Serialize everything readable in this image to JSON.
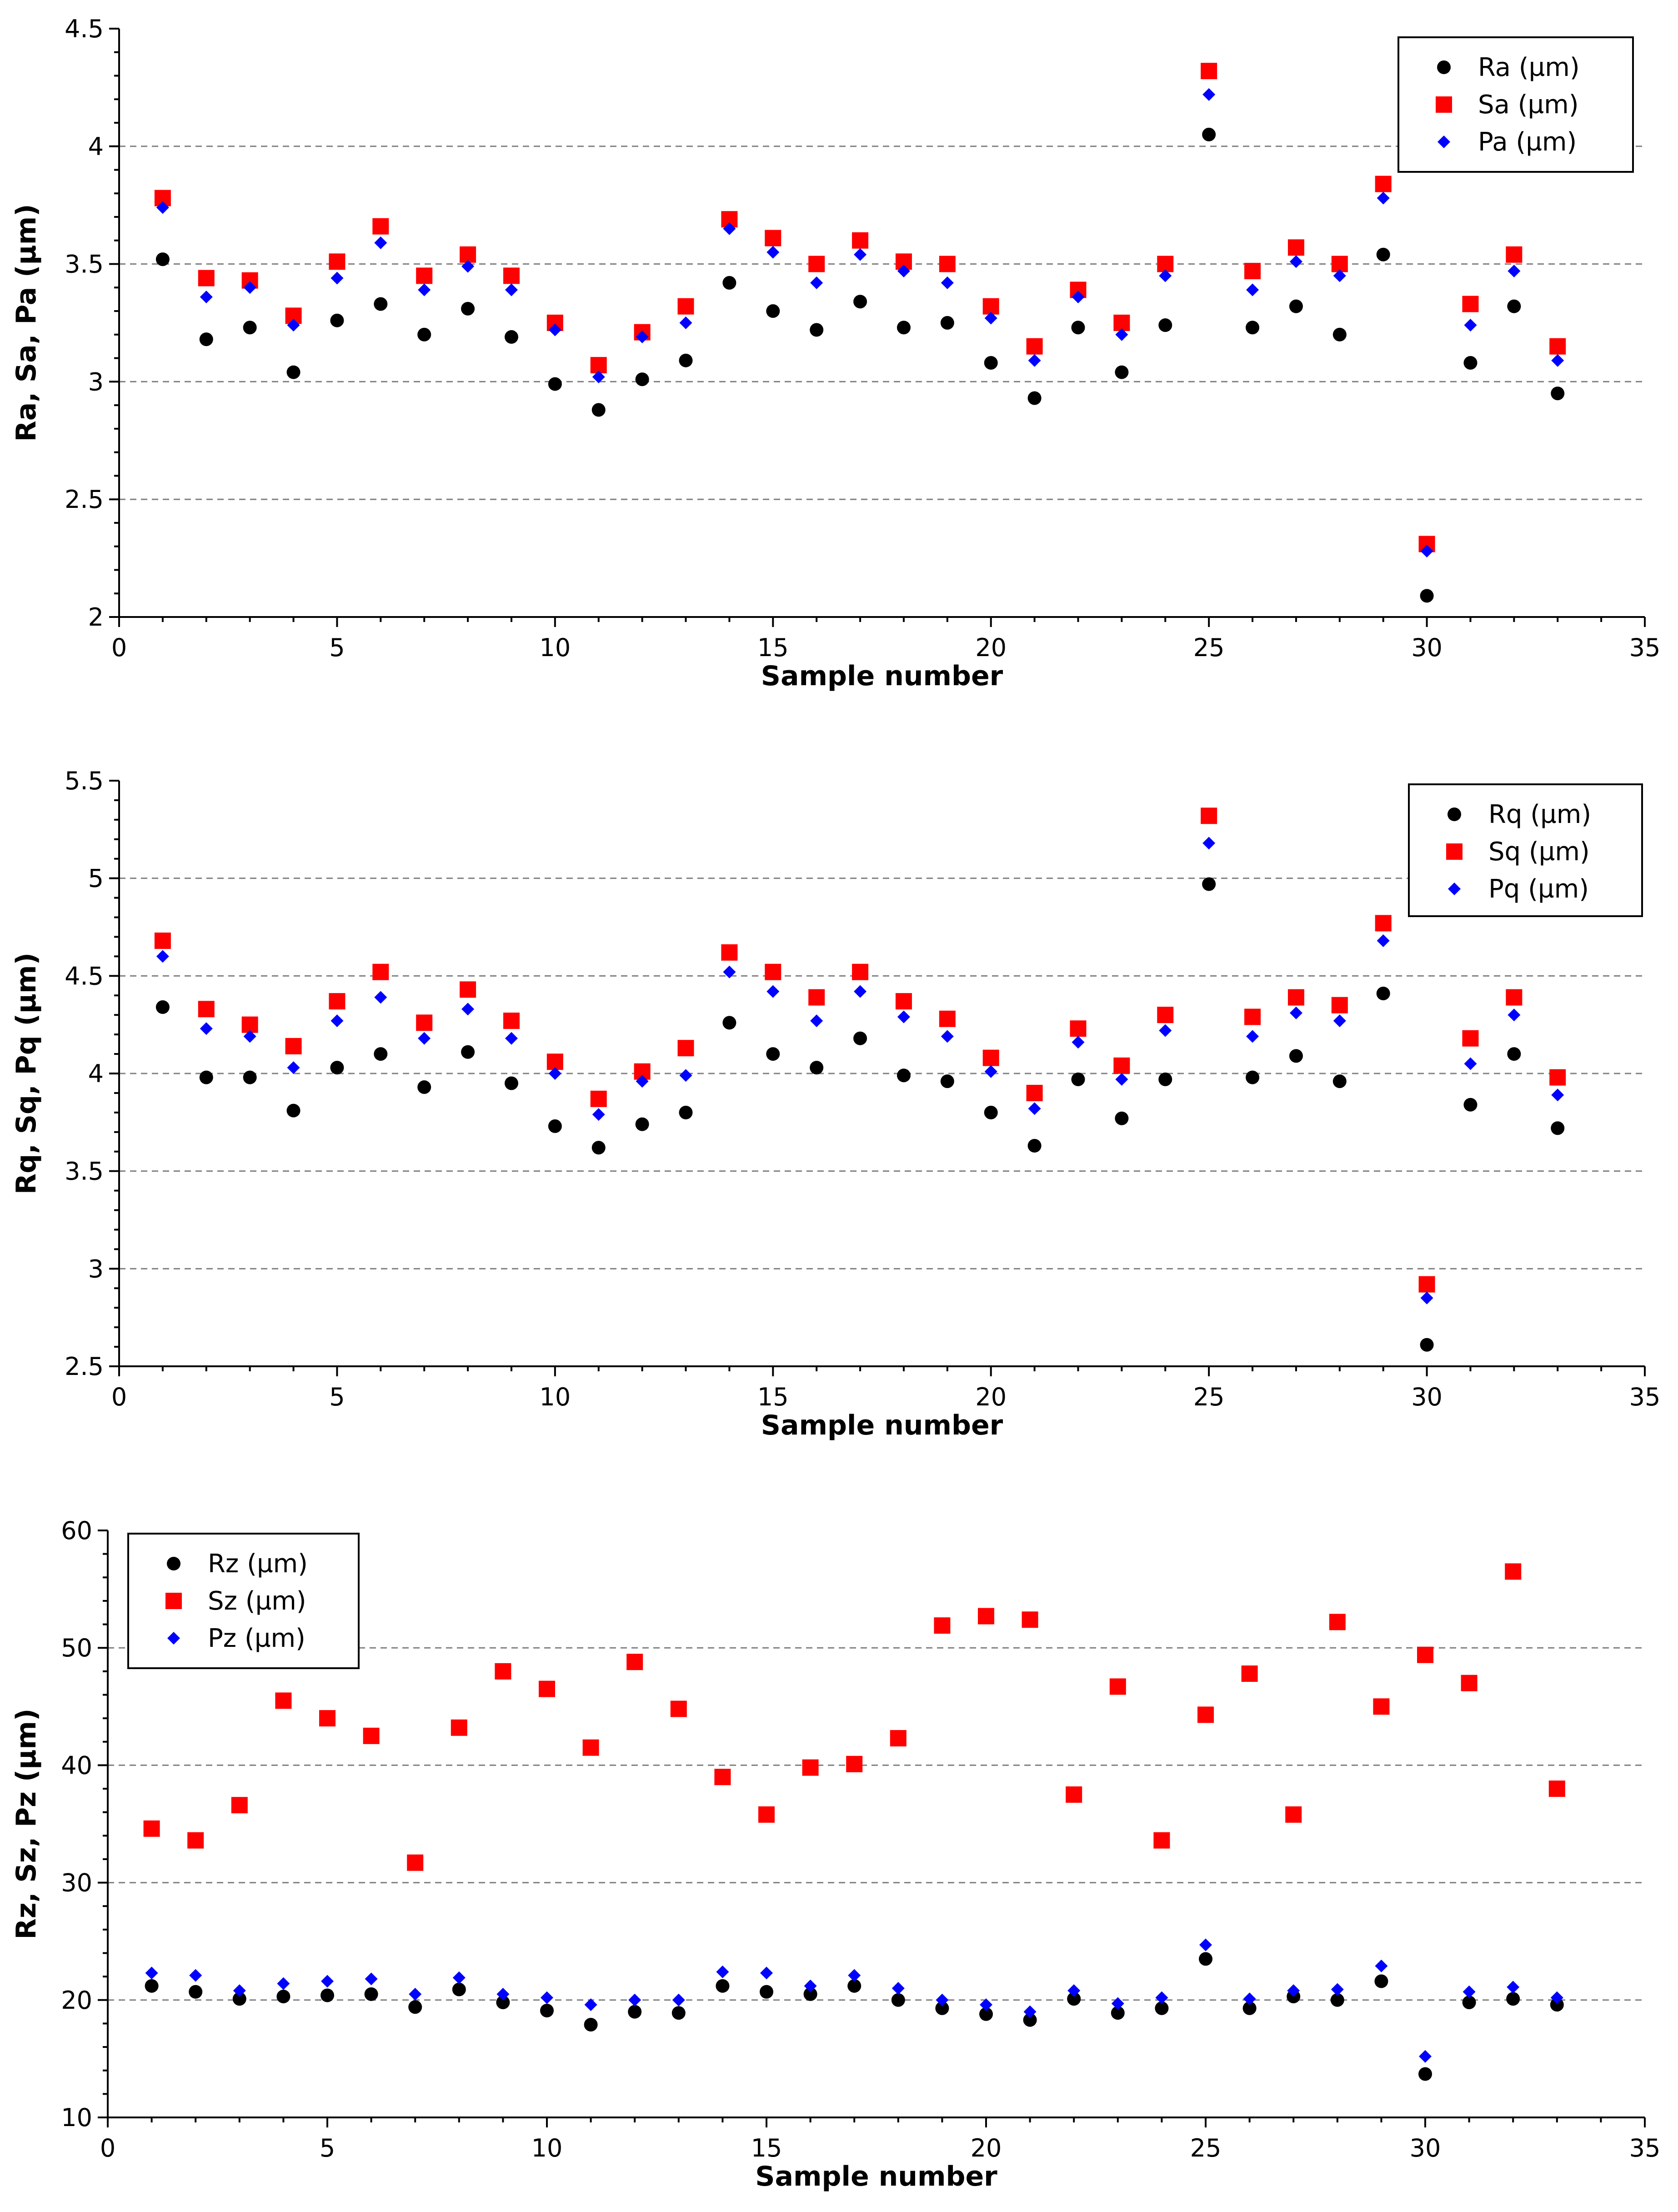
{
  "chart_data": [
    {
      "type": "scatter",
      "xlabel": "Sample number",
      "ylabel": "Ra, Sa, Pa (µm)",
      "xlim": [
        0,
        35
      ],
      "ylim": [
        2,
        4.5
      ],
      "xticks": [
        "0",
        "5",
        "10",
        "15",
        "20",
        "25",
        "30",
        "35"
      ],
      "yticks": [
        "2",
        "2.5",
        "3",
        "3.5",
        "4",
        "4.5"
      ],
      "grid_y": [
        2.5,
        3,
        3.5,
        4
      ],
      "legend_position": "top-right",
      "x": [
        1,
        2,
        3,
        4,
        5,
        6,
        7,
        8,
        9,
        10,
        11,
        12,
        13,
        14,
        15,
        16,
        17,
        18,
        19,
        20,
        21,
        22,
        23,
        24,
        25,
        26,
        27,
        28,
        29,
        30,
        31,
        32,
        33
      ],
      "series": [
        {
          "name": "Ra  (µm)",
          "marker": "circle",
          "color": "#000000",
          "values": [
            3.52,
            3.18,
            3.23,
            3.04,
            3.26,
            3.33,
            3.2,
            3.31,
            3.19,
            2.99,
            2.88,
            3.01,
            3.09,
            3.42,
            3.3,
            3.22,
            3.34,
            3.23,
            3.25,
            3.08,
            2.93,
            3.23,
            3.04,
            3.24,
            4.05,
            3.23,
            3.32,
            3.2,
            3.54,
            2.09,
            3.08,
            3.32,
            2.95
          ]
        },
        {
          "name": "Sa  (µm)",
          "marker": "square",
          "color": "#ff0000",
          "values": [
            3.78,
            3.44,
            3.43,
            3.28,
            3.51,
            3.66,
            3.45,
            3.54,
            3.45,
            3.25,
            3.07,
            3.21,
            3.32,
            3.69,
            3.61,
            3.5,
            3.6,
            3.51,
            3.5,
            3.32,
            3.15,
            3.39,
            3.25,
            3.5,
            4.32,
            3.47,
            3.57,
            3.5,
            3.84,
            2.31,
            3.33,
            3.54,
            3.15
          ]
        },
        {
          "name": "Pa  (µm)",
          "marker": "diamond",
          "color": "#0000ff",
          "values": [
            3.74,
            3.36,
            3.4,
            3.24,
            3.44,
            3.59,
            3.39,
            3.49,
            3.39,
            3.22,
            3.02,
            3.19,
            3.25,
            3.65,
            3.55,
            3.42,
            3.54,
            3.47,
            3.42,
            3.27,
            3.09,
            3.36,
            3.2,
            3.45,
            4.22,
            3.39,
            3.51,
            3.45,
            3.78,
            2.28,
            3.24,
            3.47,
            3.09
          ]
        }
      ]
    },
    {
      "type": "scatter",
      "xlabel": "Sample number",
      "ylabel": "Rq, Sq, Pq (µm)",
      "xlim": [
        0,
        35
      ],
      "ylim": [
        2.5,
        5.5
      ],
      "xticks": [
        "0",
        "5",
        "10",
        "15",
        "20",
        "25",
        "30",
        "35"
      ],
      "yticks": [
        "2.5",
        "3",
        "3.5",
        "4",
        "4.5",
        "5",
        "5.5"
      ],
      "grid_y": [
        3,
        3.5,
        4,
        4.5,
        5
      ],
      "legend_position": "top-right",
      "x": [
        1,
        2,
        3,
        4,
        5,
        6,
        7,
        8,
        9,
        10,
        11,
        12,
        13,
        14,
        15,
        16,
        17,
        18,
        19,
        20,
        21,
        22,
        23,
        24,
        25,
        26,
        27,
        28,
        29,
        30,
        31,
        32,
        33
      ],
      "series": [
        {
          "name": "Rq  (µm)",
          "marker": "circle",
          "color": "#000000",
          "values": [
            4.34,
            3.98,
            3.98,
            3.81,
            4.03,
            4.1,
            3.93,
            4.11,
            3.95,
            3.73,
            3.62,
            3.74,
            3.8,
            4.26,
            4.1,
            4.03,
            4.18,
            3.99,
            3.96,
            3.8,
            3.63,
            3.97,
            3.77,
            3.97,
            4.97,
            3.98,
            4.09,
            3.96,
            4.41,
            2.61,
            3.84,
            4.1,
            3.72
          ]
        },
        {
          "name": "Sq  (µm)",
          "marker": "square",
          "color": "#ff0000",
          "values": [
            4.68,
            4.33,
            4.25,
            4.14,
            4.37,
            4.52,
            4.26,
            4.43,
            4.27,
            4.06,
            3.87,
            4.01,
            4.13,
            4.62,
            4.52,
            4.39,
            4.52,
            4.37,
            4.28,
            4.08,
            3.9,
            4.23,
            4.04,
            4.3,
            5.32,
            4.29,
            4.39,
            4.35,
            4.77,
            2.92,
            4.18,
            4.39,
            3.98
          ]
        },
        {
          "name": "Pq  (µm)",
          "marker": "diamond",
          "color": "#0000ff",
          "values": [
            4.6,
            4.23,
            4.19,
            4.03,
            4.27,
            4.39,
            4.18,
            4.33,
            4.18,
            4.0,
            3.79,
            3.96,
            3.99,
            4.52,
            4.42,
            4.27,
            4.42,
            4.29,
            4.19,
            4.01,
            3.82,
            4.16,
            3.97,
            4.22,
            5.18,
            4.19,
            4.31,
            4.27,
            4.68,
            2.85,
            4.05,
            4.3,
            3.89
          ]
        }
      ]
    },
    {
      "type": "scatter",
      "xlabel": "Sample number",
      "ylabel": "Rz, Sz, Pz (µm)",
      "xlim": [
        0,
        35
      ],
      "ylim": [
        10,
        60
      ],
      "xticks": [
        "0",
        "5",
        "10",
        "15",
        "20",
        "25",
        "30",
        "35"
      ],
      "yticks": [
        "10",
        "20",
        "30",
        "40",
        "50",
        "60"
      ],
      "grid_y": [
        20,
        30,
        40,
        50
      ],
      "legend_position": "top-left",
      "x": [
        1,
        2,
        3,
        4,
        5,
        6,
        7,
        8,
        9,
        10,
        11,
        12,
        13,
        14,
        15,
        16,
        17,
        18,
        19,
        20,
        21,
        22,
        23,
        24,
        25,
        26,
        27,
        28,
        29,
        30,
        31,
        32,
        33
      ],
      "series": [
        {
          "name": "Rz  (µm)",
          "marker": "circle",
          "color": "#000000",
          "values": [
            21.2,
            20.7,
            20.1,
            20.3,
            20.4,
            20.5,
            19.4,
            20.9,
            19.8,
            19.1,
            17.9,
            19.0,
            18.9,
            21.2,
            20.7,
            20.5,
            21.2,
            20.0,
            19.3,
            18.8,
            18.3,
            20.1,
            18.9,
            19.3,
            23.5,
            19.3,
            20.3,
            20.0,
            21.6,
            13.7,
            19.8,
            20.1,
            19.6
          ]
        },
        {
          "name": "Sz  (µm)",
          "marker": "square",
          "color": "#ff0000",
          "values": [
            34.6,
            33.6,
            36.6,
            45.5,
            44.0,
            42.5,
            31.7,
            43.2,
            48.0,
            46.5,
            41.5,
            48.8,
            44.8,
            39.0,
            35.8,
            39.8,
            40.1,
            42.3,
            51.9,
            52.7,
            52.4,
            37.5,
            46.7,
            33.6,
            44.3,
            47.8,
            35.8,
            52.2,
            45.0,
            49.4,
            47.0,
            56.5,
            38.0
          ]
        },
        {
          "name": "Pz  (µm)",
          "marker": "diamond",
          "color": "#0000ff",
          "values": [
            22.3,
            22.1,
            20.8,
            21.4,
            21.6,
            21.8,
            20.5,
            21.9,
            20.5,
            20.2,
            19.6,
            20.0,
            20.0,
            22.4,
            22.3,
            21.2,
            22.1,
            21.0,
            20.0,
            19.6,
            19.0,
            20.8,
            19.7,
            20.2,
            24.7,
            20.1,
            20.8,
            20.9,
            22.9,
            15.2,
            20.7,
            21.1,
            20.2
          ]
        }
      ]
    }
  ]
}
